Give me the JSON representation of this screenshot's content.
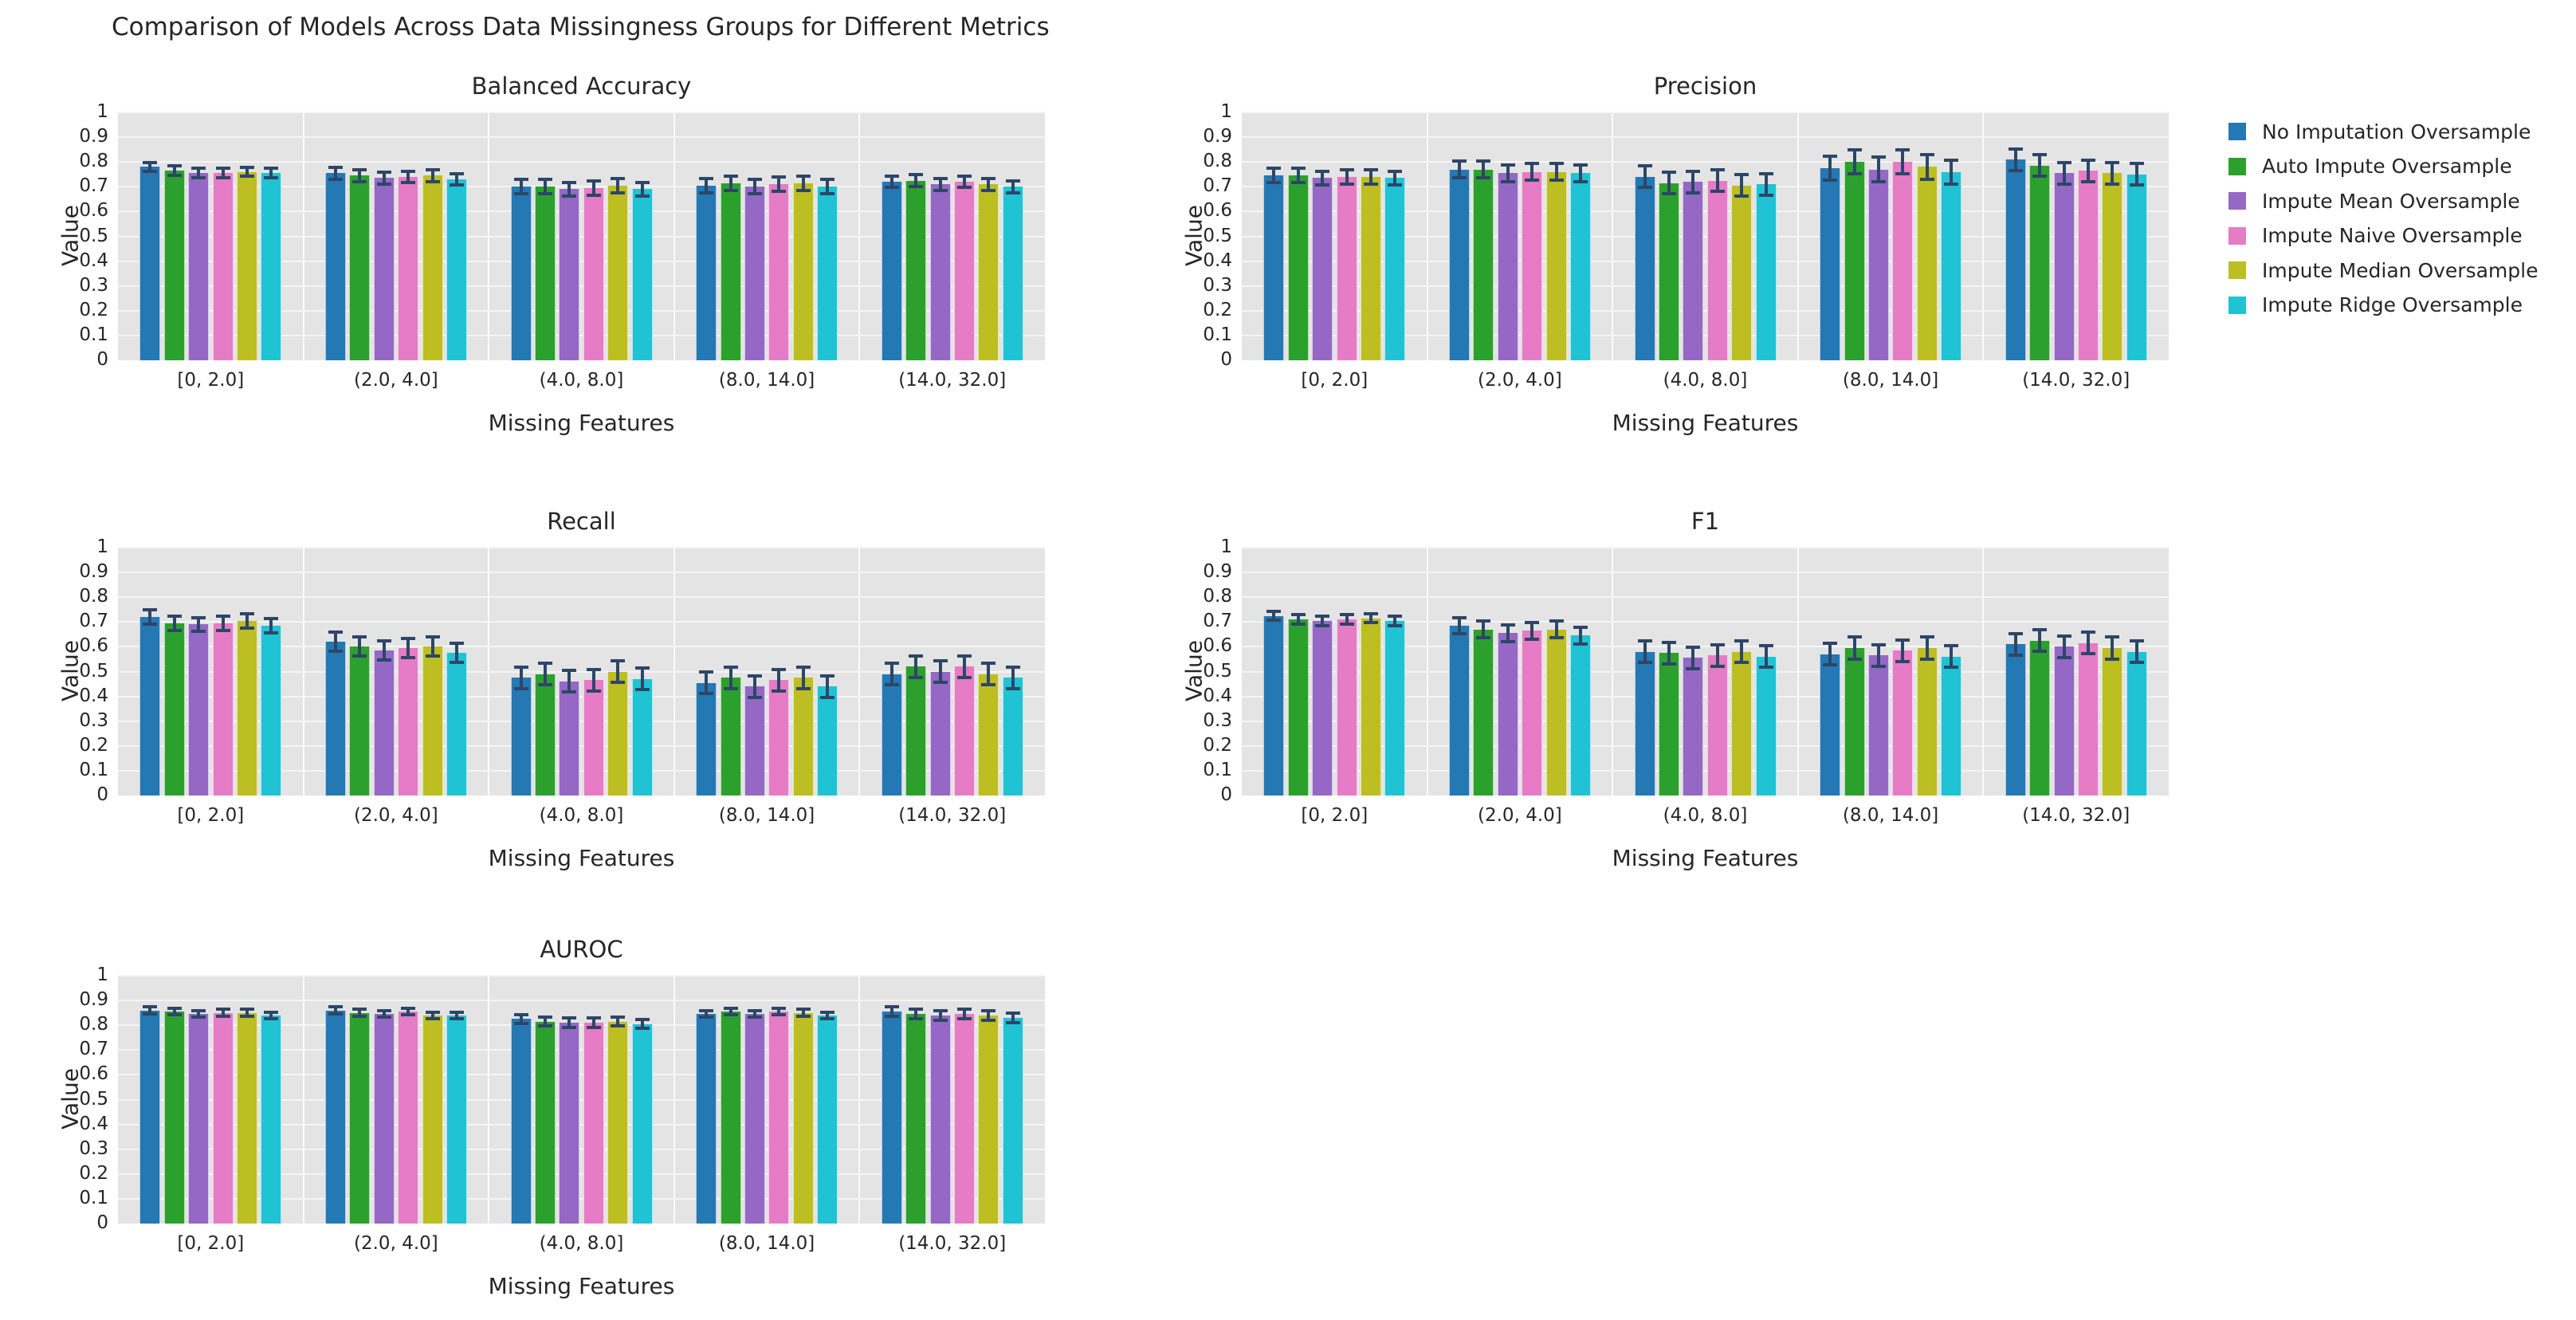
{
  "page_title": "Comparison of Models Across Data Missingness Groups for Different Metrics",
  "axes": {
    "x_label": "Missing Features",
    "y_label": "Value",
    "y_ticks": [
      "1",
      "0.9",
      "0.8",
      "0.7",
      "0.6",
      "0.5",
      "0.4",
      "0.3",
      "0.2",
      "0.1",
      "0"
    ],
    "categories": [
      "[0, 2.0]",
      "(2.0, 4.0]",
      "(4.0, 8.0]",
      "(8.0, 14.0]",
      "(14.0, 32.0]"
    ]
  },
  "colors": {
    "plot_background": "#e4e4e4",
    "horizontal_grid": "#f5f5f5",
    "vertical_grid": "#fbfbfb",
    "error_bar": "#2d4668",
    "text": "#262626"
  },
  "legend": {
    "entries": [
      {
        "label": "No Imputation Oversample",
        "color": "#2478b4"
      },
      {
        "label": "Auto Impute Oversample",
        "color": "#2ca02c"
      },
      {
        "label": "Impute Mean Oversample",
        "color": "#9468c4"
      },
      {
        "label": "Impute Naive Oversample",
        "color": "#e57cc5"
      },
      {
        "label": "Impute Median Oversample",
        "color": "#bcbe22"
      },
      {
        "label": "Impute Ridge Oversample",
        "color": "#20c3d4"
      }
    ]
  },
  "chart_data": [
    {
      "type": "bar",
      "title": "Balanced Accuracy",
      "xlabel": "Missing Features",
      "ylabel": "Value",
      "ylim": [
        0,
        1
      ],
      "categories": [
        "[0, 2.0]",
        "(2.0, 4.0]",
        "(4.0, 8.0]",
        "(8.0, 14.0]",
        "(14.0, 32.0]"
      ],
      "errors": [
        0.025,
        0.03,
        0.035,
        0.035,
        0.03
      ],
      "series": [
        {
          "name": "No Imputation Oversample",
          "color": "#2478b4",
          "values": [
            0.78,
            0.755,
            0.7,
            0.705,
            0.72
          ]
        },
        {
          "name": "Auto Impute Oversample",
          "color": "#2ca02c",
          "values": [
            0.765,
            0.745,
            0.7,
            0.715,
            0.725
          ]
        },
        {
          "name": "Impute Mean Oversample",
          "color": "#9468c4",
          "values": [
            0.755,
            0.735,
            0.69,
            0.7,
            0.71
          ]
        },
        {
          "name": "Impute Naive Oversample",
          "color": "#e57cc5",
          "values": [
            0.755,
            0.74,
            0.695,
            0.71,
            0.72
          ]
        },
        {
          "name": "Impute Median Oversample",
          "color": "#bcbe22",
          "values": [
            0.76,
            0.745,
            0.705,
            0.715,
            0.71
          ]
        },
        {
          "name": "Impute Ridge Oversample",
          "color": "#20c3d4",
          "values": [
            0.755,
            0.73,
            0.69,
            0.7,
            0.7
          ]
        }
      ]
    },
    {
      "type": "bar",
      "title": "Precision",
      "xlabel": "Missing Features",
      "ylabel": "Value",
      "ylim": [
        0,
        1
      ],
      "categories": [
        "[0, 2.0]",
        "(2.0, 4.0]",
        "(4.0, 8.0]",
        "(8.0, 14.0]",
        "(14.0, 32.0]"
      ],
      "errors": [
        0.035,
        0.04,
        0.05,
        0.055,
        0.05
      ],
      "series": [
        {
          "name": "No Imputation Oversample",
          "color": "#2478b4",
          "values": [
            0.745,
            0.77,
            0.74,
            0.775,
            0.81
          ]
        },
        {
          "name": "Auto Impute Oversample",
          "color": "#2ca02c",
          "values": [
            0.745,
            0.77,
            0.715,
            0.8,
            0.785
          ]
        },
        {
          "name": "Impute Mean Oversample",
          "color": "#9468c4",
          "values": [
            0.735,
            0.755,
            0.72,
            0.77,
            0.755
          ]
        },
        {
          "name": "Impute Naive Oversample",
          "color": "#e57cc5",
          "values": [
            0.74,
            0.76,
            0.725,
            0.8,
            0.765
          ]
        },
        {
          "name": "Impute Median Oversample",
          "color": "#bcbe22",
          "values": [
            0.74,
            0.76,
            0.705,
            0.78,
            0.755
          ]
        },
        {
          "name": "Impute Ridge Oversample",
          "color": "#20c3d4",
          "values": [
            0.735,
            0.755,
            0.71,
            0.76,
            0.75
          ]
        }
      ]
    },
    {
      "type": "bar",
      "title": "Recall",
      "xlabel": "Missing Features",
      "ylabel": "Value",
      "ylim": [
        0,
        1
      ],
      "categories": [
        "[0, 2.0]",
        "(2.0, 4.0]",
        "(4.0, 8.0]",
        "(8.0, 14.0]",
        "(14.0, 32.0]"
      ],
      "errors": [
        0.035,
        0.045,
        0.05,
        0.05,
        0.05
      ],
      "series": [
        {
          "name": "No Imputation Oversample",
          "color": "#2478b4",
          "values": [
            0.72,
            0.62,
            0.475,
            0.455,
            0.49
          ]
        },
        {
          "name": "Auto Impute Oversample",
          "color": "#2ca02c",
          "values": [
            0.695,
            0.6,
            0.49,
            0.475,
            0.52
          ]
        },
        {
          "name": "Impute Mean Oversample",
          "color": "#9468c4",
          "values": [
            0.69,
            0.585,
            0.46,
            0.44,
            0.5
          ]
        },
        {
          "name": "Impute Naive Oversample",
          "color": "#e57cc5",
          "values": [
            0.695,
            0.595,
            0.465,
            0.465,
            0.52
          ]
        },
        {
          "name": "Impute Median Oversample",
          "color": "#bcbe22",
          "values": [
            0.705,
            0.6,
            0.5,
            0.475,
            0.49
          ]
        },
        {
          "name": "Impute Ridge Oversample",
          "color": "#20c3d4",
          "values": [
            0.685,
            0.575,
            0.47,
            0.44,
            0.475
          ]
        }
      ]
    },
    {
      "type": "bar",
      "title": "F1",
      "xlabel": "Missing Features",
      "ylabel": "Value",
      "ylim": [
        0,
        1
      ],
      "categories": [
        "[0, 2.0]",
        "(2.0, 4.0]",
        "(4.0, 8.0]",
        "(8.0, 14.0]",
        "(14.0, 32.0]"
      ],
      "errors": [
        0.025,
        0.04,
        0.05,
        0.05,
        0.05
      ],
      "series": [
        {
          "name": "No Imputation Oversample",
          "color": "#2478b4",
          "values": [
            0.725,
            0.685,
            0.58,
            0.57,
            0.61
          ]
        },
        {
          "name": "Auto Impute Oversample",
          "color": "#2ca02c",
          "values": [
            0.71,
            0.67,
            0.575,
            0.595,
            0.625
          ]
        },
        {
          "name": "Impute Mean Oversample",
          "color": "#9468c4",
          "values": [
            0.705,
            0.655,
            0.555,
            0.565,
            0.6
          ]
        },
        {
          "name": "Impute Naive Oversample",
          "color": "#e57cc5",
          "values": [
            0.71,
            0.665,
            0.565,
            0.585,
            0.615
          ]
        },
        {
          "name": "Impute Median Oversample",
          "color": "#bcbe22",
          "values": [
            0.715,
            0.67,
            0.58,
            0.595,
            0.595
          ]
        },
        {
          "name": "Impute Ridge Oversample",
          "color": "#20c3d4",
          "values": [
            0.705,
            0.645,
            0.56,
            0.56,
            0.58
          ]
        }
      ]
    },
    {
      "type": "bar",
      "title": "AUROC",
      "xlabel": "Missing Features",
      "ylabel": "Value",
      "ylim": [
        0,
        1
      ],
      "categories": [
        "[0, 2.0]",
        "(2.0, 4.0]",
        "(4.0, 8.0]",
        "(8.0, 14.0]",
        "(14.0, 32.0]"
      ],
      "errors": [
        0.02,
        0.02,
        0.025,
        0.02,
        0.025
      ],
      "series": [
        {
          "name": "No Imputation Oversample",
          "color": "#2478b4",
          "values": [
            0.86,
            0.86,
            0.825,
            0.845,
            0.855
          ]
        },
        {
          "name": "Auto Impute Oversample",
          "color": "#2ca02c",
          "values": [
            0.855,
            0.85,
            0.815,
            0.855,
            0.845
          ]
        },
        {
          "name": "Impute Mean Oversample",
          "color": "#9468c4",
          "values": [
            0.845,
            0.845,
            0.81,
            0.845,
            0.84
          ]
        },
        {
          "name": "Impute Naive Oversample",
          "color": "#e57cc5",
          "values": [
            0.85,
            0.855,
            0.81,
            0.855,
            0.845
          ]
        },
        {
          "name": "Impute Median Oversample",
          "color": "#bcbe22",
          "values": [
            0.85,
            0.84,
            0.815,
            0.85,
            0.84
          ]
        },
        {
          "name": "Impute Ridge Oversample",
          "color": "#20c3d4",
          "values": [
            0.84,
            0.84,
            0.805,
            0.84,
            0.83
          ]
        }
      ]
    }
  ]
}
